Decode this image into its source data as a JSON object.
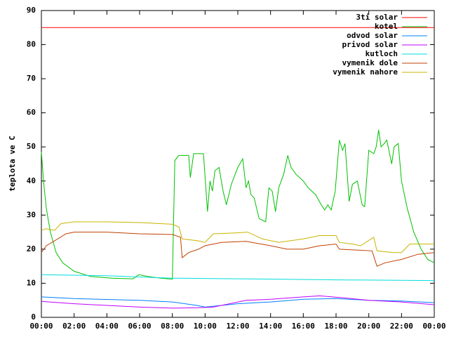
{
  "chart_data": {
    "type": "line",
    "ylabel": "teplota ve C",
    "xlim": [
      0,
      24
    ],
    "xticks": [
      {
        "value": 0,
        "label": "00:00"
      },
      {
        "value": 2,
        "label": "02:00"
      },
      {
        "value": 4,
        "label": "04:00"
      },
      {
        "value": 6,
        "label": "06:00"
      },
      {
        "value": 8,
        "label": "08:00"
      },
      {
        "value": 10,
        "label": "10:00"
      },
      {
        "value": 12,
        "label": "12:00"
      },
      {
        "value": 14,
        "label": "14:00"
      },
      {
        "value": 16,
        "label": "16:00"
      },
      {
        "value": 18,
        "label": "18:00"
      },
      {
        "value": 20,
        "label": "20:00"
      },
      {
        "value": 22,
        "label": "22:00"
      },
      {
        "value": 24,
        "label": "00:00"
      }
    ],
    "ylim": [
      0,
      90
    ],
    "yticks": [
      0,
      10,
      20,
      30,
      40,
      50,
      60,
      70,
      80,
      90
    ],
    "legend": "top-right",
    "series": [
      {
        "name": "3ti solar",
        "color": "#ff0000",
        "x": [
          0,
          24
        ],
        "values": [
          85,
          85
        ]
      },
      {
        "name": "kotel",
        "color": "#00c000",
        "x": [
          0,
          0.13,
          0.3,
          0.55,
          0.9,
          1.3,
          2.0,
          3.0,
          4.3,
          5.6,
          5.95,
          6.5,
          7.3,
          8.0,
          8.15,
          8.4,
          9.0,
          9.1,
          9.3,
          9.9,
          10.15,
          10.3,
          10.45,
          10.6,
          10.85,
          11.1,
          11.3,
          11.6,
          12.0,
          12.3,
          12.5,
          12.65,
          12.8,
          13.0,
          13.3,
          13.7,
          13.9,
          14.1,
          14.3,
          14.5,
          14.8,
          15.05,
          15.25,
          15.55,
          16.0,
          16.3,
          16.75,
          17.1,
          17.3,
          17.5,
          17.7,
          17.95,
          18.2,
          18.4,
          18.55,
          18.8,
          19.0,
          19.3,
          19.6,
          19.75,
          20.0,
          20.3,
          20.45,
          20.6,
          20.75,
          20.95,
          21.1,
          21.4,
          21.55,
          21.8,
          22.0,
          22.35,
          22.75,
          23.2,
          23.6,
          24
        ],
        "values": [
          48.5,
          40,
          32,
          25,
          19,
          16,
          13.5,
          12,
          11.5,
          11.3,
          12.5,
          12,
          11.5,
          11.2,
          46,
          47.5,
          47.5,
          41,
          48,
          48,
          31,
          40,
          37,
          43,
          44,
          37,
          33,
          39,
          44,
          46.5,
          38,
          40,
          36,
          35,
          29,
          28,
          38,
          37,
          31,
          38,
          42,
          47.5,
          44,
          42,
          40,
          38,
          36,
          33,
          31.5,
          33,
          31.5,
          37,
          52,
          49,
          51,
          34,
          39,
          40,
          33,
          32.5,
          49,
          48,
          50,
          55,
          50,
          51,
          52,
          45,
          50,
          51,
          40,
          32,
          25,
          20,
          17,
          16
        ]
      },
      {
        "name": "odvod solar",
        "color": "#0080ff",
        "x": [
          0,
          2,
          6,
          8,
          9.5,
          10,
          11,
          12,
          14,
          16,
          18,
          20,
          22,
          24
        ],
        "values": [
          6,
          5.5,
          5,
          4.5,
          3.5,
          3,
          3.5,
          4,
          4.5,
          5.3,
          5.5,
          5,
          4.8,
          4.3
        ]
      },
      {
        "name": "privod solar",
        "color": "#c000ff",
        "x": [
          0,
          2,
          4,
          6,
          8,
          9.5,
          10.5,
          11.5,
          12.5,
          14,
          16,
          17,
          18.5,
          20,
          22,
          24
        ],
        "values": [
          4.7,
          4,
          3.5,
          3,
          2.7,
          2.8,
          3,
          4,
          5,
          5.3,
          6,
          6.3,
          5.7,
          5,
          4.5,
          3.7
        ]
      },
      {
        "name": "kutloch",
        "color": "#00dddd",
        "x": [
          0,
          4,
          8,
          12,
          18,
          24
        ],
        "values": [
          12.5,
          12.2,
          11.5,
          11.3,
          11,
          10.8
        ]
      },
      {
        "name": "vymenik dole",
        "color": "#c04000",
        "x": [
          0,
          0.3,
          1,
          1.5,
          2,
          4,
          6,
          8,
          8.5,
          8.6,
          9,
          9.6,
          10,
          11,
          12.5,
          14,
          15,
          16,
          17,
          18,
          18.2,
          19,
          20.2,
          20.5,
          21,
          22,
          23,
          24
        ],
        "values": [
          19,
          21,
          23,
          24.5,
          25,
          25,
          24.5,
          24.3,
          23.5,
          17.5,
          19,
          20,
          21,
          22,
          22.3,
          21,
          20,
          20,
          21,
          21.5,
          20,
          19.8,
          19.5,
          15,
          16,
          17,
          18.5,
          19
        ]
      },
      {
        "name": "vymenik nahore",
        "color": "#c8b400",
        "x": [
          0,
          0.3,
          0.8,
          1.2,
          2,
          4,
          6,
          8,
          8.4,
          8.6,
          9.5,
          10,
          10.5,
          12,
          12.6,
          13.5,
          14.5,
          16,
          17,
          18,
          18.2,
          19,
          19.5,
          20.3,
          20.5,
          21.5,
          22,
          22.5,
          24
        ],
        "values": [
          25.5,
          26,
          25.5,
          27.5,
          28,
          28,
          27.8,
          27.3,
          26.5,
          23,
          22.5,
          22,
          24.5,
          24.8,
          25,
          23,
          22,
          23,
          24,
          24,
          22,
          21.5,
          21,
          23.5,
          19.5,
          19,
          19,
          21.5,
          21.5
        ]
      }
    ]
  }
}
